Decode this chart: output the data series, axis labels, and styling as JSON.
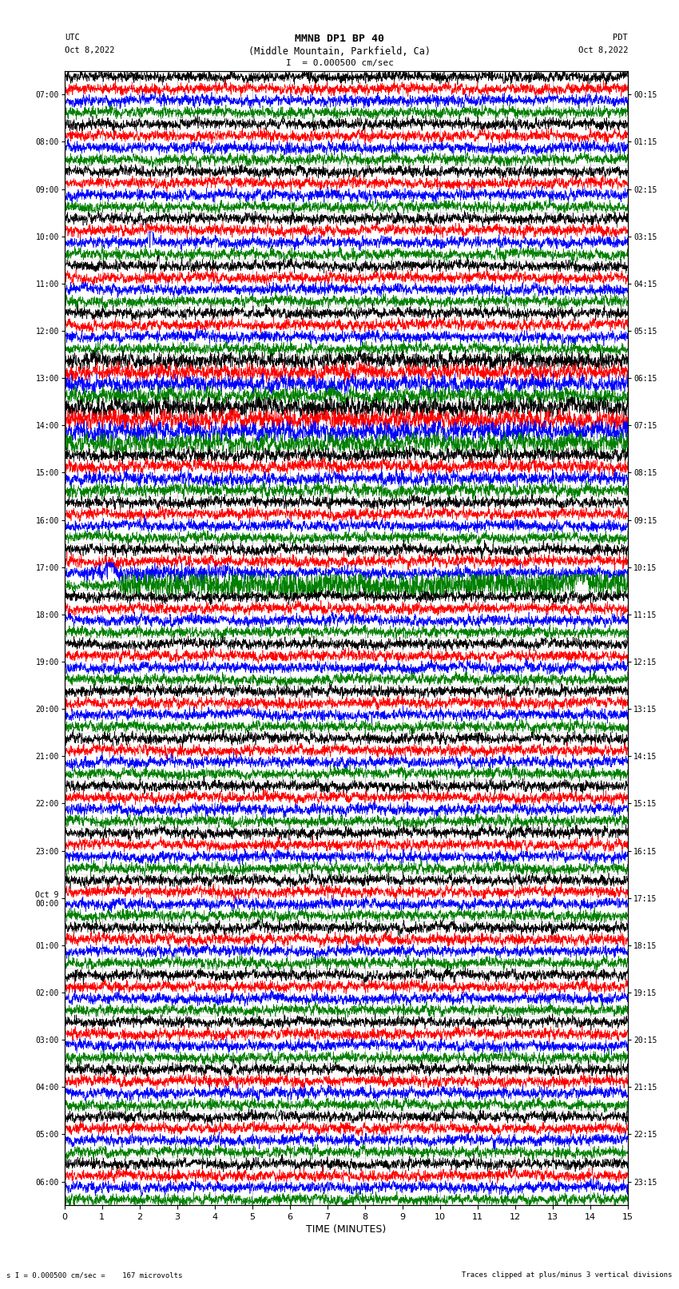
{
  "title_line1": "MMNB DP1 BP 40",
  "title_line2": "(Middle Mountain, Parkfield, Ca)",
  "scale_text": "I  = 0.000500 cm/sec",
  "utc_label": "UTC",
  "utc_date": "Oct 8,2022",
  "pdt_label": "PDT",
  "pdt_date": "Oct 8,2022",
  "bottom_left": "s I = 0.000500 cm/sec =    167 microvolts",
  "bottom_right": "Traces clipped at plus/minus 3 vertical divisions",
  "xlabel": "TIME (MINUTES)",
  "time_ticks": [
    0,
    1,
    2,
    3,
    4,
    5,
    6,
    7,
    8,
    9,
    10,
    11,
    12,
    13,
    14,
    15
  ],
  "left_times": [
    "07:00",
    "08:00",
    "09:00",
    "10:00",
    "11:00",
    "12:00",
    "13:00",
    "14:00",
    "15:00",
    "16:00",
    "17:00",
    "18:00",
    "19:00",
    "20:00",
    "21:00",
    "22:00",
    "23:00",
    "Oct 9\n00:00",
    "01:00",
    "02:00",
    "03:00",
    "04:00",
    "05:00",
    "06:00"
  ],
  "right_times": [
    "00:15",
    "01:15",
    "02:15",
    "03:15",
    "04:15",
    "05:15",
    "06:15",
    "07:15",
    "08:15",
    "09:15",
    "10:15",
    "11:15",
    "12:15",
    "13:15",
    "14:15",
    "15:15",
    "16:15",
    "17:15",
    "18:15",
    "19:15",
    "20:15",
    "21:15",
    "22:15",
    "23:15"
  ],
  "n_rows": 24,
  "traces_per_row": 4,
  "colors": [
    "black",
    "red",
    "blue",
    "green"
  ],
  "bg_color": "white",
  "grid_color": "#888888",
  "clip_level": 1.0
}
